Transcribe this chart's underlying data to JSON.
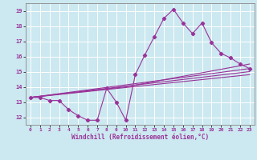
{
  "xlabel": "Windchill (Refroidissement éolien,°C)",
  "background_color": "#cce8f0",
  "grid_color": "#ffffff",
  "line_color": "#993399",
  "xlim": [
    -0.5,
    23.5
  ],
  "ylim": [
    11.5,
    19.5
  ],
  "yticks": [
    12,
    13,
    14,
    15,
    16,
    17,
    18,
    19
  ],
  "xticks": [
    0,
    1,
    2,
    3,
    4,
    5,
    6,
    7,
    8,
    9,
    10,
    11,
    12,
    13,
    14,
    15,
    16,
    17,
    18,
    19,
    20,
    21,
    22,
    23
  ],
  "main_data_x": [
    0,
    1,
    2,
    3,
    4,
    5,
    6,
    7,
    8,
    9,
    10,
    11,
    12,
    13,
    14,
    15,
    16,
    17,
    18,
    19,
    20,
    21,
    22,
    23
  ],
  "main_data_y": [
    13.3,
    13.3,
    13.1,
    13.1,
    12.5,
    12.1,
    11.8,
    11.8,
    13.9,
    13.0,
    11.8,
    14.8,
    16.1,
    17.3,
    18.5,
    19.1,
    18.2,
    17.5,
    18.2,
    16.9,
    16.2,
    15.9,
    15.5,
    15.2
  ],
  "trend1_x": [
    0,
    23
  ],
  "trend1_y": [
    13.3,
    15.2
  ],
  "trend2_x": [
    0,
    23
  ],
  "trend2_y": [
    13.3,
    14.8
  ],
  "trend3_x": [
    0,
    10,
    23
  ],
  "trend3_y": [
    13.3,
    14.0,
    15.5
  ],
  "trend4_x": [
    0,
    23
  ],
  "trend4_y": [
    13.3,
    15.0
  ]
}
